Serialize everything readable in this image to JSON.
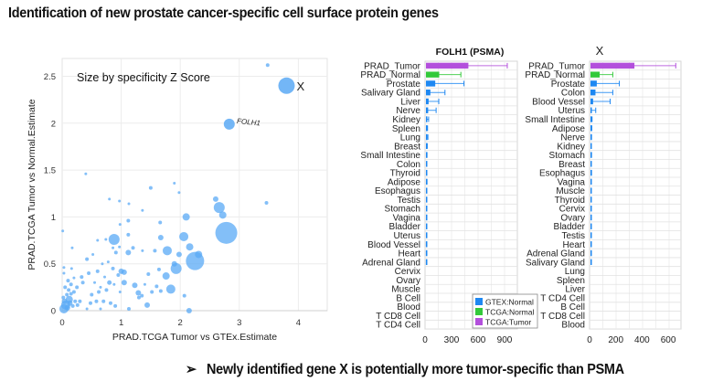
{
  "title": "Identification of new prostate cancer-specific cell surface protein genes",
  "conclusion": {
    "bullet": "➢",
    "text": "Newly identified gene X is potentially more tumor-specific than PSMA"
  },
  "colors": {
    "scatter_point": "#5aa9f5",
    "gtex_normal": "#1e88f2",
    "tcga_normal": "#33c93a",
    "tcga_tumor": "#b34fdc",
    "grid": "#ececec",
    "axis_text": "#333333"
  },
  "chart_data": [
    {
      "type": "scatter",
      "title": "",
      "annotation": "Size by specificity Z Score",
      "xlabel": "PRAD.TCGA Tumor vs GTEx.Estimate",
      "ylabel": "PRAD.TCGA Tumor vs Normal.Estimate",
      "xlim": [
        0,
        4.5
      ],
      "ylim": [
        0,
        2.7
      ],
      "xticks": [
        "0",
        "1",
        "2",
        "3",
        "4"
      ],
      "xtick_values": [
        0,
        1,
        2,
        3,
        4
      ],
      "yticks": [
        "0",
        "0.5",
        "1",
        "1.5",
        "2",
        "2.5"
      ],
      "ytick_values": [
        0,
        0.5,
        1,
        1.5,
        2,
        2.5
      ],
      "grid": true,
      "labeled_points": [
        {
          "label": "X",
          "x": 3.8,
          "y": 2.4,
          "size": 9
        },
        {
          "label": "FOLH1",
          "x": 2.83,
          "y": 1.99,
          "size": 6
        }
      ],
      "points": [
        {
          "x": 3.48,
          "y": 2.62,
          "size": 2
        },
        {
          "x": 2.78,
          "y": 0.83,
          "size": 12
        },
        {
          "x": 2.25,
          "y": 0.53,
          "size": 10
        },
        {
          "x": 2.66,
          "y": 1.1,
          "size": 6
        },
        {
          "x": 2.72,
          "y": 1.02,
          "size": 4
        },
        {
          "x": 2.6,
          "y": 1.19,
          "size": 3
        },
        {
          "x": 3.46,
          "y": 1.15,
          "size": 2
        },
        {
          "x": 2.1,
          "y": 1.0,
          "size": 4
        },
        {
          "x": 2.06,
          "y": 0.79,
          "size": 5
        },
        {
          "x": 2.16,
          "y": 0.68,
          "size": 4
        },
        {
          "x": 2.31,
          "y": 0.6,
          "size": 4
        },
        {
          "x": 1.93,
          "y": 0.45,
          "size": 6
        },
        {
          "x": 1.78,
          "y": 0.64,
          "size": 5
        },
        {
          "x": 1.76,
          "y": 0.37,
          "size": 4
        },
        {
          "x": 1.84,
          "y": 0.23,
          "size": 5
        },
        {
          "x": 0.88,
          "y": 0.76,
          "size": 6
        },
        {
          "x": 2.07,
          "y": 0.16,
          "size": 2
        },
        {
          "x": 2.15,
          "y": 0.0,
          "size": 3
        },
        {
          "x": 1.9,
          "y": 0.5,
          "size": 3
        },
        {
          "x": 1.98,
          "y": 0.6,
          "size": 3
        },
        {
          "x": 1.67,
          "y": 0.78,
          "size": 3
        },
        {
          "x": 1.66,
          "y": 0.94,
          "size": 2
        },
        {
          "x": 1.5,
          "y": 1.31,
          "size": 2
        },
        {
          "x": 1.9,
          "y": 1.36,
          "size": 1.5
        },
        {
          "x": 1.98,
          "y": 1.26,
          "size": 1.5
        },
        {
          "x": 0.4,
          "y": 1.46,
          "size": 1.5
        },
        {
          "x": 0.8,
          "y": 1.19,
          "size": 1.5
        },
        {
          "x": 0.97,
          "y": 1.17,
          "size": 1.5
        },
        {
          "x": 1.13,
          "y": 1.14,
          "size": 1.5
        },
        {
          "x": 1.36,
          "y": 1.07,
          "size": 1.5
        },
        {
          "x": 1.12,
          "y": 0.96,
          "size": 2
        },
        {
          "x": 0.98,
          "y": 0.92,
          "size": 1.5
        },
        {
          "x": 1.12,
          "y": 0.81,
          "size": 2
        },
        {
          "x": 0.01,
          "y": 0.85,
          "size": 1.5
        },
        {
          "x": 0.17,
          "y": 0.67,
          "size": 1.5
        },
        {
          "x": 0.6,
          "y": 0.75,
          "size": 1.5
        },
        {
          "x": 0.74,
          "y": 0.76,
          "size": 1.5
        },
        {
          "x": 1.2,
          "y": 0.67,
          "size": 2
        },
        {
          "x": 1.36,
          "y": 0.64,
          "size": 1.5
        },
        {
          "x": 1.57,
          "y": 0.64,
          "size": 2
        },
        {
          "x": 1.12,
          "y": 0.62,
          "size": 3
        },
        {
          "x": 0.91,
          "y": 0.62,
          "size": 2
        },
        {
          "x": 1.0,
          "y": 0.42,
          "size": 3
        },
        {
          "x": 1.05,
          "y": 0.41,
          "size": 3
        },
        {
          "x": 1.23,
          "y": 0.27,
          "size": 3
        },
        {
          "x": 1.29,
          "y": 0.19,
          "size": 3
        },
        {
          "x": 1.3,
          "y": 0.14,
          "size": 2
        },
        {
          "x": 1.44,
          "y": 0.06,
          "size": 3
        },
        {
          "x": 1.52,
          "y": 0.2,
          "size": 2
        },
        {
          "x": 1.6,
          "y": 0.26,
          "size": 2
        },
        {
          "x": 1.67,
          "y": 0.21,
          "size": 2
        },
        {
          "x": 1.46,
          "y": 0.39,
          "size": 2
        },
        {
          "x": 1.64,
          "y": 0.44,
          "size": 2
        },
        {
          "x": 1.05,
          "y": 0.3,
          "size": 3
        },
        {
          "x": 0.95,
          "y": 0.38,
          "size": 2
        },
        {
          "x": 0.8,
          "y": 0.3,
          "size": 2.5
        },
        {
          "x": 0.75,
          "y": 0.22,
          "size": 2
        },
        {
          "x": 0.62,
          "y": 0.2,
          "size": 2
        },
        {
          "x": 0.5,
          "y": 0.17,
          "size": 2
        },
        {
          "x": 0.35,
          "y": 0.3,
          "size": 2
        },
        {
          "x": 0.25,
          "y": 0.25,
          "size": 2
        },
        {
          "x": 0.42,
          "y": 0.55,
          "size": 2
        },
        {
          "x": 0.52,
          "y": 0.6,
          "size": 1.5
        },
        {
          "x": 0.68,
          "y": 0.5,
          "size": 1.5
        },
        {
          "x": 0.78,
          "y": 0.52,
          "size": 1.5
        },
        {
          "x": 0.86,
          "y": 0.45,
          "size": 2
        },
        {
          "x": 0.6,
          "y": 0.42,
          "size": 2
        },
        {
          "x": 0.45,
          "y": 0.4,
          "size": 2
        },
        {
          "x": 0.33,
          "y": 0.36,
          "size": 2
        },
        {
          "x": 0.3,
          "y": 0.1,
          "size": 2
        },
        {
          "x": 0.48,
          "y": 0.08,
          "size": 2
        },
        {
          "x": 0.58,
          "y": 0.1,
          "size": 2
        },
        {
          "x": 0.7,
          "y": 0.1,
          "size": 2
        },
        {
          "x": 0.82,
          "y": 0.08,
          "size": 2
        },
        {
          "x": 0.9,
          "y": 0.05,
          "size": 2
        },
        {
          "x": 0.65,
          "y": 0.02,
          "size": 1.5
        },
        {
          "x": 0.42,
          "y": 0.02,
          "size": 1.5
        },
        {
          "x": 0.2,
          "y": 0.2,
          "size": 2
        },
        {
          "x": 0.15,
          "y": 0.28,
          "size": 2
        },
        {
          "x": 0.1,
          "y": 0.32,
          "size": 2
        },
        {
          "x": 0.03,
          "y": 0.46,
          "size": 1.5
        },
        {
          "x": 0.03,
          "y": 0.4,
          "size": 1.5
        },
        {
          "x": 0.05,
          "y": 0.25,
          "size": 2
        },
        {
          "x": 0.12,
          "y": 0.12,
          "size": 4
        },
        {
          "x": 0.06,
          "y": 0.06,
          "size": 5
        },
        {
          "x": 0.03,
          "y": 0.02,
          "size": 5
        },
        {
          "x": 0.09,
          "y": 0.03,
          "size": 3
        },
        {
          "x": 0.13,
          "y": 0.08,
          "size": 3
        },
        {
          "x": 0.04,
          "y": 0.1,
          "size": 3
        },
        {
          "x": 0.15,
          "y": 0.18,
          "size": 2
        },
        {
          "x": 0.08,
          "y": 0.17,
          "size": 2
        },
        {
          "x": 0.18,
          "y": 0.05,
          "size": 2
        },
        {
          "x": 0.22,
          "y": 0.1,
          "size": 2
        },
        {
          "x": 0.26,
          "y": 0.06,
          "size": 2
        },
        {
          "x": 0.02,
          "y": 0.14,
          "size": 2
        },
        {
          "x": 0.11,
          "y": 0.22,
          "size": 2
        },
        {
          "x": 0.16,
          "y": 0.45,
          "size": 1.5
        },
        {
          "x": 0.2,
          "y": 0.35,
          "size": 1.5
        },
        {
          "x": 0.55,
          "y": 0.3,
          "size": 1.5
        },
        {
          "x": 0.72,
          "y": 0.36,
          "size": 1.5
        },
        {
          "x": 0.88,
          "y": 0.28,
          "size": 1.5
        },
        {
          "x": 0.98,
          "y": 0.2,
          "size": 1.5
        },
        {
          "x": 0.65,
          "y": 0.25,
          "size": 1.5
        },
        {
          "x": 1.13,
          "y": 0.02,
          "size": 2
        },
        {
          "x": 0.97,
          "y": 0.68,
          "size": 1.5
        },
        {
          "x": 0.86,
          "y": 0.67,
          "size": 1.5
        },
        {
          "x": 1.4,
          "y": 0.28,
          "size": 1.5
        },
        {
          "x": 1.35,
          "y": 0.16,
          "size": 2
        }
      ]
    },
    {
      "type": "bar",
      "orientation": "horizontal",
      "title": "FOLH1 (PSMA)",
      "xlim": [
        0,
        1000
      ],
      "xticks": [
        "0",
        "300",
        "600",
        "900"
      ],
      "xtick_values": [
        0,
        300,
        600,
        900
      ],
      "legend": {
        "placement": "bottom-right",
        "entries": [
          {
            "label": "GTEX:Normal",
            "color_key": "gtex_normal"
          },
          {
            "label": "TCGA:Normal",
            "color_key": "tcga_normal"
          },
          {
            "label": "TCGA:Tumor",
            "color_key": "tcga_tumor"
          }
        ]
      },
      "categories": [
        "PRAD_Tumor",
        "PRAD_Normal",
        "Prostate",
        "Salivary Gland",
        "Liver",
        "Nerve",
        "Kidney",
        "Spleen",
        "Lung",
        "Breast",
        "Small Intestine",
        "Colon",
        "Thyroid",
        "Adipose",
        "Esophagus",
        "Testis",
        "Stomach",
        "Vagina",
        "Bladder",
        "Uterus",
        "Blood Vessel",
        "Heart",
        "Adrenal Gland",
        "Cervix",
        "Ovary",
        "Muscle",
        "B Cell",
        "Blood",
        "T CD8 Cell",
        "T CD4 Cell"
      ],
      "series_group": [
        "tcga_tumor",
        "tcga_normal",
        "gtex_normal",
        "gtex_normal",
        "gtex_normal",
        "gtex_normal",
        "gtex_normal",
        "gtex_normal",
        "gtex_normal",
        "gtex_normal",
        "gtex_normal",
        "gtex_normal",
        "gtex_normal",
        "gtex_normal",
        "gtex_normal",
        "gtex_normal",
        "gtex_normal",
        "gtex_normal",
        "gtex_normal",
        "gtex_normal",
        "gtex_normal",
        "gtex_normal",
        "gtex_normal",
        "gtex_normal",
        "gtex_normal",
        "gtex_normal",
        "gtex_normal",
        "gtex_normal",
        "gtex_normal",
        "gtex_normal"
      ],
      "values": [
        480,
        150,
        105,
        50,
        30,
        25,
        8,
        5,
        7,
        5,
        6,
        7,
        8,
        9,
        7,
        4,
        6,
        3,
        3,
        3,
        3,
        3,
        3,
        0,
        0,
        0,
        0,
        0,
        0,
        0
      ],
      "error_high": [
        920,
        395,
        430,
        215,
        145,
        115,
        30,
        18,
        22,
        15,
        12,
        10,
        10,
        12,
        10,
        6,
        8,
        5,
        5,
        5,
        4,
        4,
        4,
        0,
        0,
        0,
        0,
        0,
        0,
        0
      ]
    },
    {
      "type": "bar",
      "orientation": "horizontal",
      "title": "X",
      "xlim": [
        0,
        700
      ],
      "xticks": [
        "0",
        "200",
        "400",
        "600"
      ],
      "xtick_values": [
        0,
        200,
        400,
        600
      ],
      "categories": [
        "PRAD_Tumor",
        "PRAD_Normal",
        "Prostate",
        "Colon",
        "Blood Vessel",
        "Uterus",
        "Small Intestine",
        "Adipose",
        "Nerve",
        "Kidney",
        "Stomach",
        "Breast",
        "Esophagus",
        "Vagina",
        "Muscle",
        "Thyroid",
        "Cervix",
        "Ovary",
        "Bladder",
        "Testis",
        "Heart",
        "Adrenal Gland",
        "Salivary Gland",
        "Lung",
        "Spleen",
        "Liver",
        "T CD4 Cell",
        "B Cell",
        "T CD8 Cell",
        "Blood"
      ],
      "series_group": [
        "tcga_tumor",
        "tcga_normal",
        "gtex_normal",
        "gtex_normal",
        "gtex_normal",
        "gtex_normal",
        "gtex_normal",
        "gtex_normal",
        "gtex_normal",
        "gtex_normal",
        "gtex_normal",
        "gtex_normal",
        "gtex_normal",
        "gtex_normal",
        "gtex_normal",
        "gtex_normal",
        "gtex_normal",
        "gtex_normal",
        "gtex_normal",
        "gtex_normal",
        "gtex_normal",
        "gtex_normal",
        "gtex_normal",
        "gtex_normal",
        "gtex_normal",
        "gtex_normal",
        "gtex_normal",
        "gtex_normal",
        "gtex_normal",
        "gtex_normal"
      ],
      "values": [
        335,
        70,
        48,
        38,
        20,
        8,
        5,
        5,
        5,
        5,
        5,
        4,
        6,
        3,
        4,
        3,
        3,
        3,
        3,
        3,
        3,
        3,
        3,
        0,
        0,
        0,
        0,
        0,
        0,
        0
      ],
      "error_high": [
        650,
        170,
        220,
        170,
        150,
        40,
        12,
        10,
        8,
        6,
        8,
        6,
        8,
        5,
        6,
        4,
        4,
        4,
        4,
        4,
        4,
        4,
        5,
        0,
        0,
        0,
        0,
        0,
        0,
        0
      ]
    }
  ]
}
